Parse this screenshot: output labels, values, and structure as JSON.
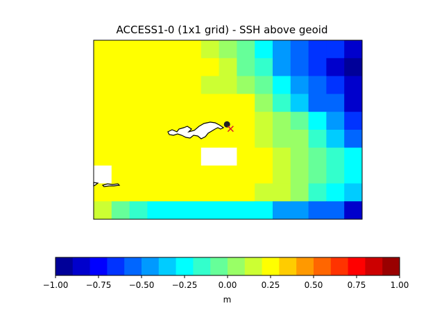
{
  "chart_data": [
    {
      "type": "heatmap",
      "title": "ACCESS1-0 (1x1 grid) - SSH above geoid",
      "xlabel": "",
      "ylabel": "",
      "xticks": false,
      "yticks": false,
      "missing_value_color": "#ffffff",
      "coastline_color": "#000000",
      "grid_rows": 10,
      "grid_cols": 15,
      "values_m": [
        [
          0.25,
          0.25,
          0.25,
          0.25,
          0.25,
          0.2,
          0.1,
          0.0,
          -0.1,
          -0.3,
          -0.5,
          -0.6,
          -0.7,
          -0.7,
          -0.8
        ],
        [
          0.25,
          0.25,
          0.25,
          0.25,
          0.2,
          0.2,
          0.2,
          0.1,
          -0.05,
          -0.2,
          -0.5,
          -0.55,
          -0.7,
          -0.8,
          -0.9
        ],
        [
          0.25,
          0.25,
          0.25,
          0.25,
          0.2,
          0.2,
          0.15,
          0.1,
          0.05,
          -0.05,
          -0.3,
          -0.45,
          -0.6,
          -0.7,
          -0.8
        ],
        [
          0.25,
          0.25,
          0.25,
          0.2,
          0.2,
          0.2,
          0.2,
          0.2,
          0.2,
          0.05,
          -0.2,
          -0.4,
          -0.55,
          -0.6,
          -0.8
        ],
        [
          0.25,
          0.25,
          0.2,
          0.2,
          0.2,
          0.2,
          0.2,
          0.2,
          0.2,
          0.1,
          0.05,
          -0.1,
          -0.3,
          -0.5,
          -0.7
        ],
        [
          0.25,
          0.25,
          0.2,
          0.2,
          0.2,
          0.2,
          0.2,
          0.2,
          0.2,
          0.1,
          0.05,
          0.0,
          -0.2,
          -0.4,
          -0.6
        ],
        [
          0.25,
          0.2,
          0.2,
          0.2,
          0.2,
          0.2,
          null,
          null,
          0.2,
          0.2,
          0.1,
          0.0,
          -0.1,
          -0.2,
          -0.3
        ],
        [
          null,
          0.2,
          0.2,
          0.2,
          0.2,
          0.2,
          0.2,
          0.2,
          0.2,
          0.2,
          0.1,
          0.0,
          -0.05,
          -0.2,
          -0.3
        ],
        [
          0.25,
          0.2,
          0.2,
          0.2,
          0.2,
          0.2,
          0.2,
          0.2,
          0.2,
          0.1,
          0.1,
          0.0,
          -0.2,
          -0.3,
          -0.4
        ],
        [
          0.1,
          -0.1,
          -0.15,
          -0.25,
          -0.25,
          -0.3,
          -0.3,
          -0.25,
          -0.25,
          -0.3,
          -0.45,
          -0.5,
          -0.55,
          -0.6,
          -0.8
        ]
      ],
      "markers": [
        {
          "kind": "filled-circle",
          "color": "#222222",
          "row": 4.7,
          "col": 7.45
        },
        {
          "kind": "x-cross",
          "color": "#dd2222",
          "row": 4.95,
          "col": 7.65
        }
      ]
    },
    {
      "type": "colorbar",
      "orientation": "horizontal",
      "colormap": "jet",
      "vmin": -1.0,
      "vmax": 1.0,
      "n_bins": 20,
      "tick_labels": [
        "−1.00",
        "−0.75",
        "−0.50",
        "−0.25",
        "0.00",
        "0.25",
        "0.50",
        "0.75",
        "1.00"
      ],
      "ticks": [
        -1.0,
        -0.75,
        -0.5,
        -0.25,
        0.0,
        0.25,
        0.5,
        0.75,
        1.0
      ],
      "label": "m"
    }
  ]
}
